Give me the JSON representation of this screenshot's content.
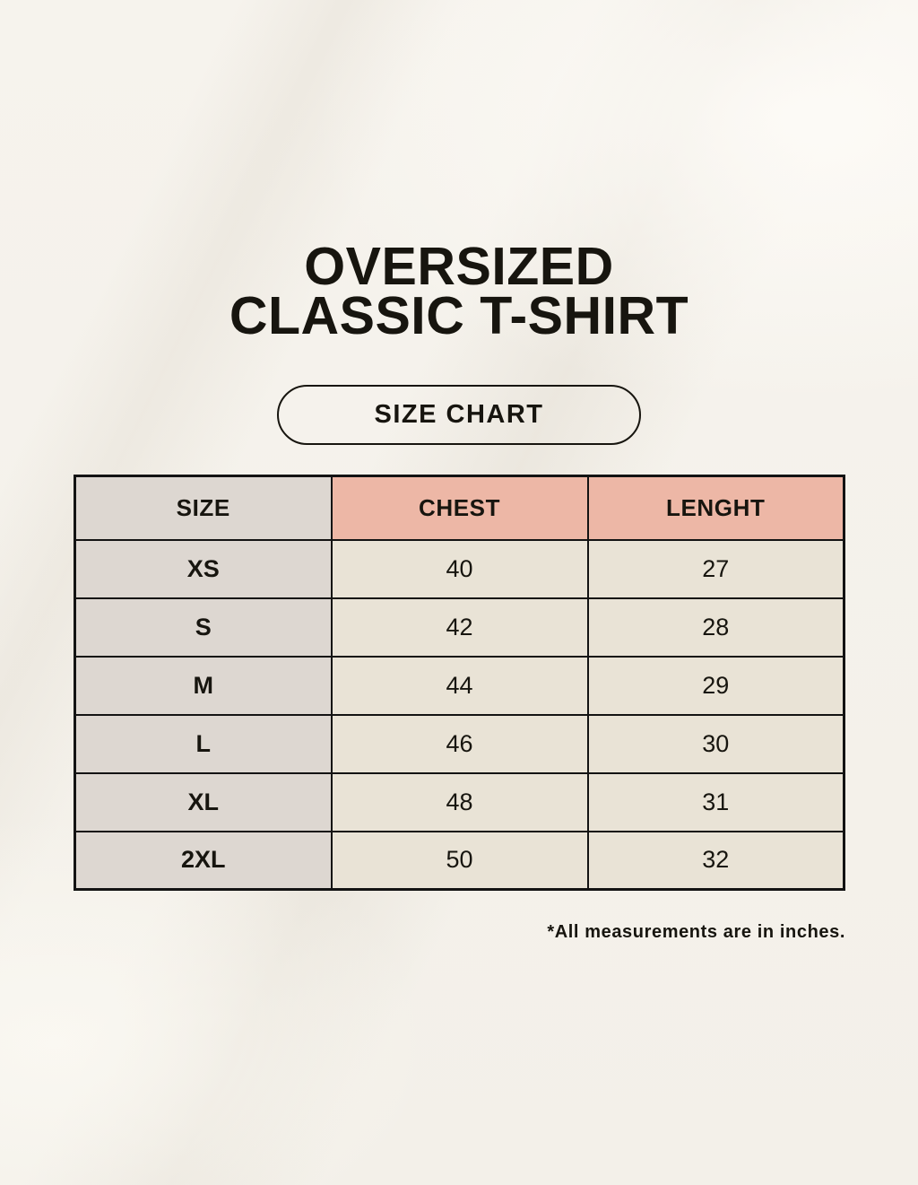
{
  "header": {
    "title_line1": "OVERSIZED",
    "title_line2": "CLASSIC T-SHIRT",
    "badge_label": "SIZE CHART"
  },
  "footer": {
    "note": "*All measurements are in inches."
  },
  "colors": {
    "page_bg": "#F4F1EA",
    "size_col_bg": "#DDD7D1",
    "header_accent_bg": "#EDB7A6",
    "cell_bg": "#E9E3D6",
    "table_border": "#131313",
    "text": "#17150F"
  },
  "chart_data": {
    "type": "table",
    "title": "OVERSIZED CLASSIC T-SHIRT — SIZE CHART",
    "columns": [
      "SIZE",
      "CHEST",
      "LENGHT"
    ],
    "units_note": "*All measurements are in inches.",
    "rows": [
      {
        "size": "XS",
        "chest": 40,
        "lenght": 27
      },
      {
        "size": "S",
        "chest": 42,
        "lenght": 28
      },
      {
        "size": "M",
        "chest": 44,
        "lenght": 29
      },
      {
        "size": "L",
        "chest": 46,
        "lenght": 30
      },
      {
        "size": "XL",
        "chest": 48,
        "lenght": 31
      },
      {
        "size": "2XL",
        "chest": 50,
        "lenght": 32
      }
    ]
  }
}
